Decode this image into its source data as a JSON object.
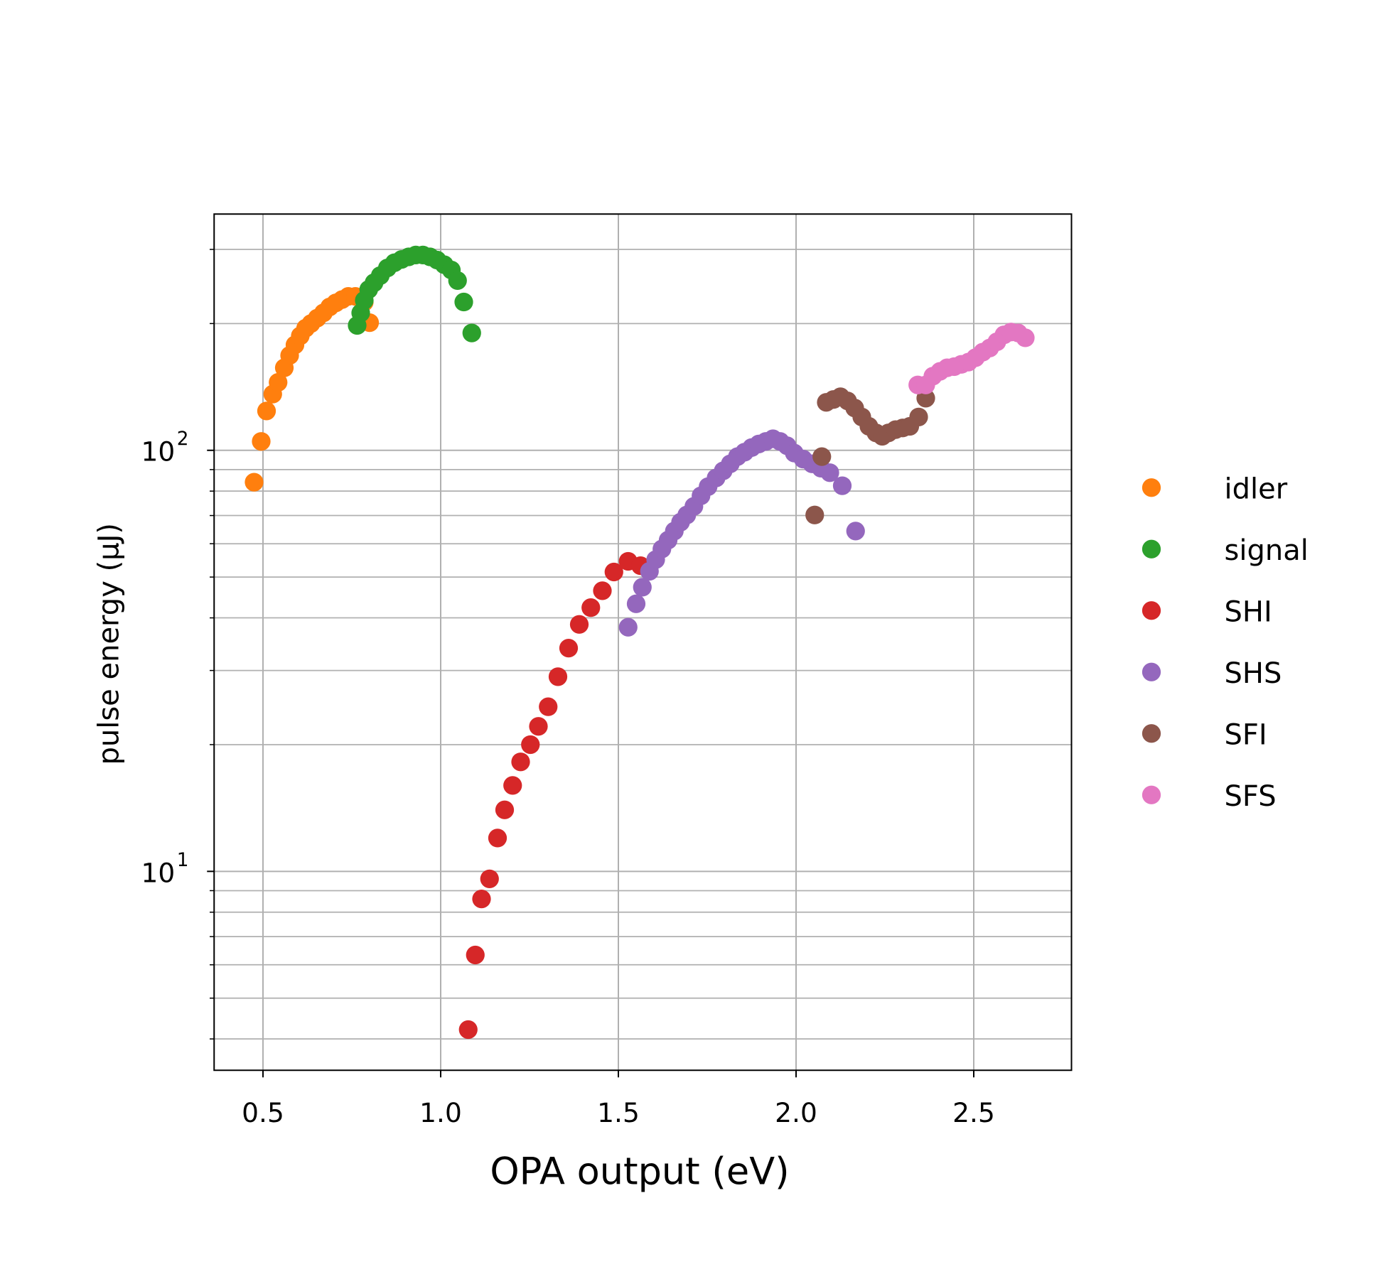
{
  "chart_data": {
    "type": "scatter",
    "title": "",
    "xlabel": "OPA output (eV)",
    "ylabel": "pulse energy (μJ)",
    "xlim": [
      0.3625,
      2.775
    ],
    "ylim": [
      3.37,
      364
    ],
    "yscale": "log",
    "grid": true,
    "legend_placement": "right, outside",
    "x_ticks": [
      0.5,
      1.0,
      1.5,
      2.0,
      2.5
    ],
    "x_tick_labels": [
      "0.5",
      "1.0",
      "1.5",
      "2.0",
      "2.5"
    ],
    "y_ticks": [
      10,
      100
    ],
    "y_tick_labels": [
      {
        "base": "10",
        "exp": "1"
      },
      {
        "base": "10",
        "exp": "2"
      }
    ],
    "series": [
      {
        "name": "idler",
        "color": "#ff7f0e",
        "x": [
          0.475,
          0.495,
          0.51,
          0.5275,
          0.5425,
          0.56,
          0.575,
          0.59,
          0.605,
          0.62,
          0.635,
          0.6525,
          0.67,
          0.6875,
          0.705,
          0.7225,
          0.74,
          0.76,
          0.785,
          0.8
        ],
        "y": [
          84,
          105,
          124,
          136,
          145,
          157,
          168,
          178,
          187,
          195,
          200,
          206,
          212,
          219,
          224,
          228,
          232,
          232,
          225,
          201
        ]
      },
      {
        "name": "signal",
        "color": "#2ca02c",
        "x": [
          0.765,
          0.775,
          0.785,
          0.7975,
          0.8125,
          0.83,
          0.85,
          0.87,
          0.89,
          0.91,
          0.93,
          0.95,
          0.97,
          0.99,
          1.01,
          1.03,
          1.0475,
          1.065,
          1.0875
        ],
        "y": [
          198,
          212,
          227,
          241,
          250,
          260,
          271,
          279,
          284,
          288,
          291,
          291,
          288,
          283,
          276,
          268,
          253,
          225,
          190
        ]
      },
      {
        "name": "SHI",
        "color": "#d62728",
        "x": [
          1.0775,
          1.0975,
          1.115,
          1.1375,
          1.16,
          1.18,
          1.2025,
          1.225,
          1.2525,
          1.275,
          1.3025,
          1.33,
          1.36,
          1.39,
          1.4225,
          1.455,
          1.4875,
          1.5275,
          1.5625
        ],
        "y": [
          4.21,
          6.33,
          8.6,
          9.6,
          12.0,
          14.0,
          16.0,
          18.2,
          20.0,
          22.1,
          24.6,
          29.0,
          33.9,
          38.6,
          42.3,
          46.4,
          51.4,
          54.5,
          53.2
        ]
      },
      {
        "name": "SHS",
        "color": "#9467bd",
        "x": [
          1.5275,
          1.55,
          1.5675,
          1.5875,
          1.605,
          1.6225,
          1.64,
          1.6575,
          1.675,
          1.6925,
          1.7125,
          1.7325,
          1.7525,
          1.775,
          1.795,
          1.815,
          1.835,
          1.855,
          1.875,
          1.895,
          1.915,
          1.935,
          1.955,
          1.975,
          1.995,
          2.02,
          2.045,
          2.07,
          2.095,
          2.13,
          2.1675
        ],
        "y": [
          38.0,
          43.2,
          47.3,
          51.6,
          55.0,
          58.3,
          61.2,
          64.3,
          67.5,
          70.2,
          73.6,
          78.0,
          82.0,
          86.0,
          89.4,
          92.9,
          96.6,
          99,
          101.5,
          103.5,
          105,
          106.5,
          105,
          102.5,
          98.5,
          95.3,
          92.9,
          90.7,
          88.5,
          82.4,
          64.3
        ]
      },
      {
        "name": "SFI",
        "color": "#8c564b",
        "x": [
          2.0525,
          2.0725,
          2.085,
          2.105,
          2.125,
          2.145,
          2.165,
          2.185,
          2.205,
          2.225,
          2.2425,
          2.26,
          2.28,
          2.3,
          2.32,
          2.345,
          2.365
        ],
        "y": [
          70.2,
          96.6,
          130,
          132,
          134,
          131,
          126,
          120,
          114,
          110,
          108,
          110,
          112,
          113,
          114,
          120,
          133
        ]
      },
      {
        "name": "SFS",
        "color": "#e377c2",
        "x": [
          2.3425,
          2.365,
          2.385,
          2.405,
          2.425,
          2.445,
          2.465,
          2.485,
          2.505,
          2.525,
          2.545,
          2.565,
          2.585,
          2.605,
          2.625,
          2.645
        ],
        "y": [
          143,
          143,
          150,
          154,
          157,
          158,
          160,
          162,
          166,
          171,
          175,
          181,
          188,
          191,
          190,
          185
        ]
      }
    ]
  }
}
